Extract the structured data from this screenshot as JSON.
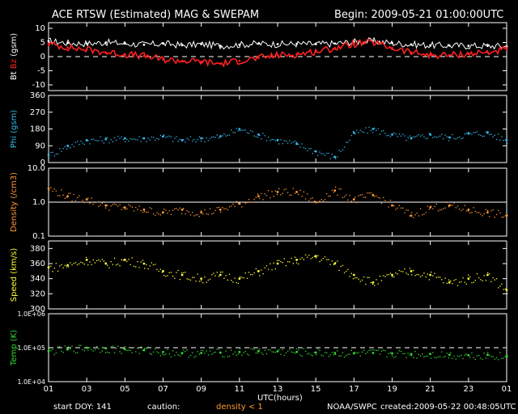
{
  "header": {
    "title": "ACE RTSW (Estimated) MAG & SWEPAM",
    "begin": "Begin: 2009-05-21 01:00:00UTC"
  },
  "footer": {
    "xlabel": "UTC(hours)",
    "start_doy": "start DOY: 141",
    "caution": "caution:",
    "density_note": "density < 1",
    "source": "NOAA/SWPC",
    "created": "created:2009-05-22 00:48:05UTC"
  },
  "colors": {
    "bt": "#ffffff",
    "bz": "#ff2020",
    "phi": "#33bbee",
    "density": "#ff9933",
    "speed": "#ffff33",
    "temp": "#33dd33",
    "frame": "#ffffff",
    "background": "#000000"
  },
  "x_ticks": [
    "01",
    "03",
    "05",
    "07",
    "09",
    "11",
    "13",
    "15",
    "17",
    "19",
    "21",
    "23",
    "01"
  ],
  "chart_data": [
    {
      "type": "line",
      "panel": "mag",
      "ylabel_parts": [
        "Bt",
        "Bz",
        "(gsm)"
      ],
      "ylim": [
        -12,
        12
      ],
      "yticks": [
        "10",
        "5",
        "0",
        "-5",
        "-10"
      ],
      "ytick_values": [
        10,
        5,
        0,
        -5,
        -10
      ],
      "dashed_reference": 0,
      "x": [
        1,
        2,
        3,
        4,
        5,
        6,
        7,
        8,
        9,
        10,
        11,
        12,
        13,
        14,
        15,
        16,
        17,
        18,
        19,
        20,
        21,
        22,
        23,
        24,
        25
      ],
      "series": [
        {
          "name": "Bt",
          "values": [
            5.5,
            4.8,
            4.6,
            5.0,
            4.6,
            4.2,
            4.6,
            4.0,
            4.4,
            3.8,
            4.2,
            4.6,
            4.4,
            4.5,
            4.4,
            4.6,
            5.2,
            5.5,
            4.8,
            4.3,
            4.0,
            3.9,
            3.8,
            3.8,
            3.6
          ]
        },
        {
          "name": "Bz",
          "values": [
            4.5,
            3.2,
            2.5,
            1.5,
            0.8,
            0.2,
            -1.0,
            -1.5,
            -1.8,
            -2.5,
            -1.5,
            -0.5,
            0.5,
            0.8,
            1.8,
            3.0,
            4.5,
            5.0,
            3.0,
            1.5,
            0.5,
            0.5,
            1.0,
            1.5,
            2.5
          ]
        }
      ]
    },
    {
      "type": "scatter",
      "panel": "phi",
      "ylabel": "Phi (gsm)",
      "ylim": [
        0,
        360
      ],
      "yticks": [
        "360",
        "270",
        "180",
        "90",
        "0"
      ],
      "ytick_values": [
        360,
        270,
        180,
        90,
        0
      ],
      "x": [
        1,
        2,
        3,
        4,
        5,
        6,
        7,
        8,
        9,
        10,
        11,
        12,
        13,
        14,
        15,
        16,
        17,
        18,
        19,
        20,
        21,
        22,
        23,
        24,
        25
      ],
      "series": [
        {
          "values": [
            40,
            90,
            120,
            125,
            130,
            130,
            140,
            120,
            130,
            140,
            180,
            150,
            120,
            100,
            60,
            30,
            160,
            180,
            150,
            130,
            150,
            135,
            155,
            160,
            120
          ]
        }
      ]
    },
    {
      "type": "scatter",
      "panel": "density",
      "ylabel": "Density (/cm3)",
      "yscale": "log",
      "ylim": [
        0.1,
        10
      ],
      "yticks": [
        "10.0",
        "1.0",
        "0.1"
      ],
      "ytick_values": [
        10,
        1,
        0.1
      ],
      "reference_line": 1,
      "x": [
        1,
        2,
        3,
        4,
        5,
        6,
        7,
        8,
        9,
        10,
        11,
        12,
        13,
        14,
        15,
        16,
        17,
        18,
        19,
        20,
        21,
        22,
        23,
        24,
        25
      ],
      "series": [
        {
          "values": [
            2.5,
            1.5,
            1.2,
            0.8,
            0.7,
            0.6,
            0.5,
            0.6,
            0.5,
            0.6,
            0.9,
            1.5,
            2.0,
            2.0,
            1.0,
            2.2,
            1.2,
            1.6,
            0.8,
            0.4,
            0.7,
            0.8,
            0.6,
            0.5,
            0.4
          ]
        }
      ]
    },
    {
      "type": "scatter",
      "panel": "speed",
      "ylabel": "Speed (km/s)",
      "ylim": [
        300,
        390
      ],
      "yticks": [
        "380",
        "360",
        "340",
        "320",
        "300"
      ],
      "ytick_values": [
        380,
        360,
        340,
        320,
        300
      ],
      "x": [
        1,
        2,
        3,
        4,
        5,
        6,
        7,
        8,
        9,
        10,
        11,
        12,
        13,
        14,
        15,
        16,
        17,
        18,
        19,
        20,
        21,
        22,
        23,
        24,
        25
      ],
      "series": [
        {
          "values": [
            355,
            358,
            365,
            360,
            365,
            360,
            350,
            345,
            340,
            345,
            340,
            350,
            360,
            365,
            370,
            360,
            345,
            335,
            345,
            350,
            345,
            335,
            340,
            345,
            325
          ]
        }
      ]
    },
    {
      "type": "scatter",
      "panel": "temp",
      "ylabel": "Temp (K)",
      "yscale": "log",
      "ylim": [
        10000,
        1000000
      ],
      "yticks": [
        "1.0E+06",
        "1.0E+05",
        "1.0E+04"
      ],
      "ytick_values": [
        1000000,
        100000,
        10000
      ],
      "dashed_reference": 100000,
      "x": [
        1,
        2,
        3,
        4,
        5,
        6,
        7,
        8,
        9,
        10,
        11,
        12,
        13,
        14,
        15,
        16,
        17,
        18,
        19,
        20,
        21,
        22,
        23,
        24,
        25
      ],
      "series": [
        {
          "values": [
            80000,
            90000,
            100000,
            95000,
            90000,
            85000,
            75000,
            70000,
            70000,
            72000,
            75000,
            80000,
            78000,
            75000,
            72000,
            70000,
            68000,
            70000,
            68000,
            65000,
            65000,
            62000,
            60000,
            62000,
            55000
          ]
        }
      ]
    }
  ]
}
